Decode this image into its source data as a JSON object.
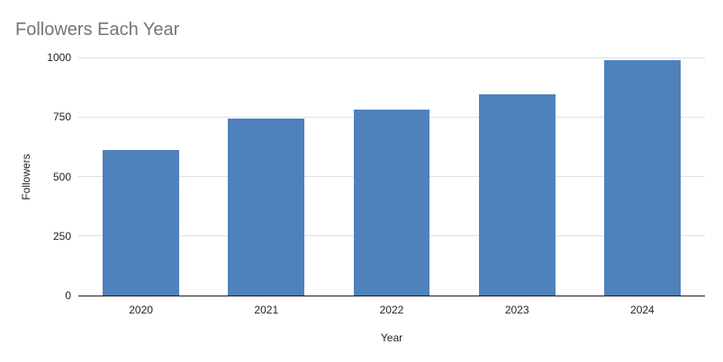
{
  "chart_data": {
    "type": "bar",
    "title": "Followers Each Year",
    "xlabel": "Year",
    "ylabel": "Followers",
    "categories": [
      "2020",
      "2021",
      "2022",
      "2023",
      "2024"
    ],
    "values": [
      610,
      745,
      780,
      845,
      990
    ],
    "ylim": [
      0,
      1000
    ],
    "yticks": [
      0,
      250,
      500,
      750,
      1000
    ],
    "legend": "none",
    "grid": "horizontal",
    "colors": {
      "bar": "#4f81bd",
      "gridline": "#e0e0e0",
      "axis_line": "#1a1a1a",
      "title": "#757575",
      "tick_label": "#222222",
      "background": "#ffffff"
    }
  }
}
